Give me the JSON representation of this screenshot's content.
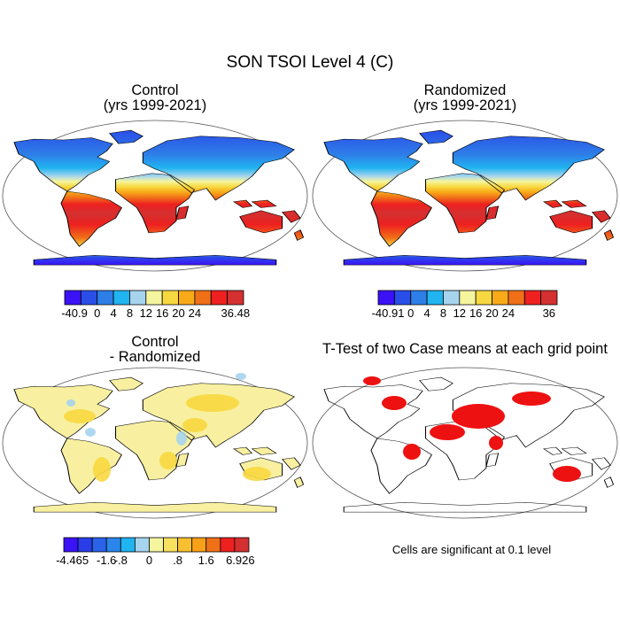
{
  "figure": {
    "title": "SON TSOI Level 4 (C)",
    "note": "Cells are significant at 0.1 level"
  },
  "panels": [
    {
      "id": "control",
      "title_line1": "Control",
      "title_line2": "(yrs 1999-2021)",
      "colorbar": {
        "colors": [
          "#3a12f5",
          "#2a4ee8",
          "#2e7ee8",
          "#20b4f0",
          "#a6d4ee",
          "#f5f5a0",
          "#f8d840",
          "#f8aa18",
          "#f07018",
          "#ee2020",
          "#d43030"
        ],
        "labels": [
          {
            "text": "-40.9",
            "boundary": 0.6
          },
          {
            "text": "0",
            "boundary": 2
          },
          {
            "text": "4",
            "boundary": 3
          },
          {
            "text": "8",
            "boundary": 4
          },
          {
            "text": "12",
            "boundary": 5
          },
          {
            "text": "16",
            "boundary": 6
          },
          {
            "text": "20",
            "boundary": 7
          },
          {
            "text": "24",
            "boundary": 8
          },
          {
            "text": "36.48",
            "boundary": 10.5
          }
        ]
      }
    },
    {
      "id": "randomized",
      "title_line1": "Randomized",
      "title_line2": "(yrs 1999-2021)",
      "colorbar": {
        "colors": [
          "#3a12f5",
          "#2a4ee8",
          "#2e7ee8",
          "#20b4f0",
          "#a6d4ee",
          "#f5f5a0",
          "#f8d840",
          "#f8aa18",
          "#f07018",
          "#ee2020",
          "#d43030"
        ],
        "labels": [
          {
            "text": "-40.91",
            "boundary": 0.6
          },
          {
            "text": "0",
            "boundary": 2
          },
          {
            "text": "4",
            "boundary": 3
          },
          {
            "text": "8",
            "boundary": 4
          },
          {
            "text": "12",
            "boundary": 5
          },
          {
            "text": "16",
            "boundary": 6
          },
          {
            "text": "20",
            "boundary": 7
          },
          {
            "text": "24",
            "boundary": 8
          },
          {
            "text": "36",
            "boundary": 10.5
          }
        ]
      }
    },
    {
      "id": "difference",
      "title_line1": "Control",
      "title_line2": "- Randomized",
      "colorbar": {
        "colors": [
          "#3a12f5",
          "#2a3ee8",
          "#2a62e8",
          "#2a86ea",
          "#20b4f0",
          "#a6d4ee",
          "#f5f5a0",
          "#f8e060",
          "#f8c030",
          "#f8a018",
          "#f07018",
          "#ee2020",
          "#d43030"
        ],
        "labels": [
          {
            "text": "-4.465",
            "boundary": 0.6
          },
          {
            "text": "-1.6",
            "boundary": 3
          },
          {
            "text": "-.8",
            "boundary": 4
          },
          {
            "text": "0",
            "boundary": 6
          },
          {
            "text": ".8",
            "boundary": 8
          },
          {
            "text": "1.6",
            "boundary": 10
          },
          {
            "text": "6.926",
            "boundary": 12.4
          }
        ]
      }
    },
    {
      "id": "ttest",
      "title_line1": "T-Test of two Case means at each grid point",
      "title_line2": ""
    }
  ],
  "colors": {
    "significant": "#ee1111",
    "land_outline": "#000000",
    "antarctica_outline": "#2a12c8"
  }
}
